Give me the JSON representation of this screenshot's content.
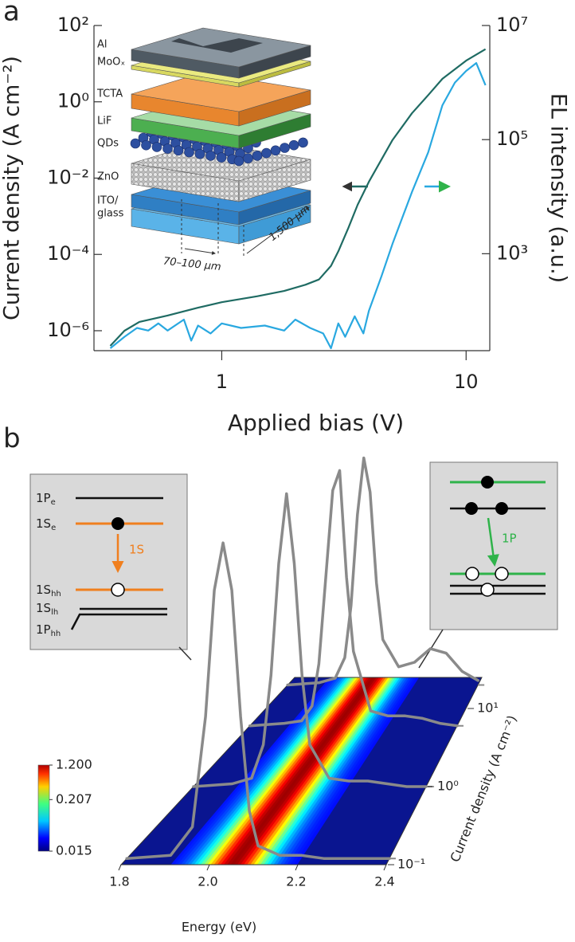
{
  "chart_data": [
    {
      "type": "line",
      "panel_label": "a",
      "x_label": "Applied bias (V)",
      "y_label": "Current density (A cm⁻²)",
      "y2_label": "EL intensity (a.u.)",
      "xscale": "log",
      "yscale": "log",
      "y2scale": "log",
      "xlim": [
        0.3,
        12.5
      ],
      "xticks": [
        1,
        10
      ],
      "ylim": [
        3e-07,
        100
      ],
      "yticks": [
        {
          "value": 100,
          "label": "10²"
        },
        {
          "value": 1,
          "label": "10⁰"
        },
        {
          "value": 0.01,
          "label": "10⁻²"
        },
        {
          "value": 0.0001,
          "label": "10⁻⁴"
        },
        {
          "value": 1e-06,
          "label": "10⁻⁶"
        }
      ],
      "y2lim": [
        20,
        10000000
      ],
      "y2ticks": [
        {
          "value": 10000000,
          "label": "10⁷"
        },
        {
          "value": 100000,
          "label": "10⁵"
        },
        {
          "value": 1000,
          "label": "10³"
        }
      ],
      "series": [
        {
          "color": "#1f6b63",
          "x": [
            0.35,
            0.4,
            0.46,
            0.6,
            0.8,
            1,
            1.4,
            1.8,
            2.2,
            2.5,
            2.8,
            3,
            3.3,
            3.6,
            4,
            5,
            6,
            7,
            8,
            10,
            12
          ],
          "values": [
            4e-07,
            1e-06,
            1.7e-06,
            2.5e-06,
            4e-06,
            5.6e-06,
            8e-06,
            1.1e-05,
            1.6e-05,
            2.2e-05,
            5e-05,
            0.00012,
            0.0005,
            0.002,
            0.008,
            0.1,
            0.5,
            1.5,
            4,
            12,
            24
          ]
        },
        {
          "color": "#29a8e0",
          "axis": "y2",
          "x": [
            0.35,
            0.4,
            0.45,
            0.5,
            0.55,
            0.6,
            0.7,
            0.75,
            0.8,
            0.9,
            1,
            1.2,
            1.5,
            1.8,
            2,
            2.3,
            2.6,
            2.8,
            3,
            3.2,
            3.5,
            3.8,
            4,
            4.5,
            5,
            6,
            7,
            8,
            9,
            10,
            11,
            12
          ],
          "values": [
            22,
            35,
            50,
            45,
            60,
            45,
            70,
            30,
            55,
            40,
            60,
            50,
            55,
            45,
            70,
            50,
            40,
            22,
            60,
            35,
            80,
            40,
            100,
            400,
            1500,
            12000,
            60000,
            400000,
            1000000,
            1600000,
            2200000,
            900000
          ]
        }
      ],
      "inset": {
        "labels": [
          "Al",
          "MoOₓ",
          "TCTA",
          "LiF",
          "QDs",
          "ZnO",
          "ITO/",
          "glass"
        ],
        "dimensions": [
          "70–100 μm",
          "1,500 μm"
        ]
      }
    },
    {
      "type": "waterfall",
      "panel_label": "b",
      "x_label": "Energy (eV)",
      "z_label": "Current density (A cm⁻²)",
      "xlim": [
        1.8,
        2.4
      ],
      "xticks": [
        1.8,
        {
          "value": 2,
          "label": "2.0"
        },
        2.2,
        2.4
      ],
      "zscale": "log",
      "zlim": [
        0.1,
        25
      ],
      "zticks": [
        {
          "value": 0.1,
          "label": "10⁻¹"
        },
        {
          "value": 1,
          "label": "10⁰"
        },
        {
          "value": 10,
          "label": "10¹"
        }
      ],
      "colorbar": {
        "scale": "log",
        "lim": [
          0.015,
          1.2
        ],
        "ticks": [
          {
            "value": 1.2,
            "label": "1.200"
          },
          {
            "value": 0.207,
            "label": "0.207"
          },
          {
            "value": 0.015,
            "label": "0.015"
          }
        ]
      },
      "spectra": {
        "color": "#8a8a8a",
        "x": [
          1.8,
          1.9,
          1.95,
          1.98,
          2.0,
          2.02,
          2.04,
          2.06,
          2.08,
          2.1,
          2.15,
          2.2,
          2.25,
          2.3,
          2.35,
          2.4
        ],
        "series": [
          {
            "current_density": 20,
            "values": [
              0,
              0.01,
              0.03,
              0.12,
              0.35,
              0.75,
              1.0,
              0.85,
              0.45,
              0.2,
              0.08,
              0.1,
              0.16,
              0.14,
              0.06,
              0.02
            ]
          },
          {
            "current_density": 6,
            "values": [
              0,
              0.01,
              0.02,
              0.08,
              0.25,
              0.6,
              0.95,
              1.03,
              0.6,
              0.3,
              0.06,
              0.04,
              0.04,
              0.03,
              0.01,
              0
            ]
          },
          {
            "current_density": 1,
            "values": [
              0,
              0.01,
              0.03,
              0.15,
              0.4,
              0.8,
              1.05,
              0.8,
              0.4,
              0.15,
              0.03,
              0.02,
              0.02,
              0.01,
              0,
              0
            ]
          },
          {
            "current_density": 0.12,
            "values": [
              0,
              0.01,
              0.1,
              0.45,
              0.85,
              1.0,
              0.85,
              0.45,
              0.15,
              0.04,
              0.01,
              0.01,
              0,
              0,
              0,
              0
            ]
          }
        ]
      },
      "left_levels": [
        {
          "main": "1P",
          "sub": "e"
        },
        {
          "main": "1S",
          "sub": "e"
        },
        {
          "main": "1S",
          "sub": "hh"
        },
        {
          "main": "1S",
          "sub": "lh"
        },
        {
          "main": "1P",
          "sub": "hh"
        }
      ],
      "left_transition": "1S",
      "right_transition": "1P"
    }
  ]
}
